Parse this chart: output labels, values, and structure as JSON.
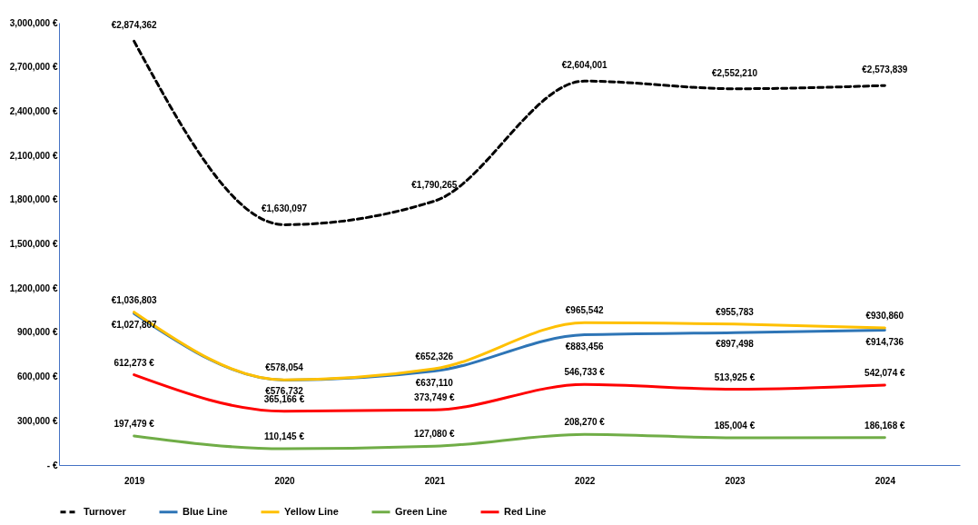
{
  "chart_data": {
    "type": "line",
    "categories": [
      "2019",
      "2020",
      "2021",
      "2022",
      "2023",
      "2024"
    ],
    "series": [
      {
        "name": "Turnover",
        "color": "#000000",
        "line_style": "dashed",
        "values": [
          2874362,
          1630097,
          1790265,
          2604001,
          2552210,
          2573839
        ],
        "value_labels": [
          "€2,874,362",
          "€1,630,097",
          "€1,790,265",
          "€2,604,001",
          "€2,552,210",
          "€2,573,839"
        ]
      },
      {
        "name": "Blue Line",
        "color": "#2e75b6",
        "line_style": "solid",
        "values": [
          1027807,
          576732,
          637110,
          883456,
          897498,
          914736
        ],
        "value_labels": [
          "€1,027,807",
          "€576,732",
          "€637,110",
          "€883,456",
          "€897,498",
          "€914,736"
        ]
      },
      {
        "name": "Yellow Line",
        "color": "#ffc000",
        "line_style": "solid",
        "values": [
          1036803,
          578054,
          652326,
          965542,
          955783,
          930860
        ],
        "value_labels": [
          "€1,036,803",
          "€578,054",
          "€652,326",
          "€965,542",
          "€955,783",
          "€930,860"
        ]
      },
      {
        "name": "Green Line",
        "color": "#70ad47",
        "line_style": "solid",
        "values": [
          197479,
          110145,
          127080,
          208270,
          185004,
          186168
        ],
        "value_labels": [
          "197,479 €",
          "110,145 €",
          "127,080 €",
          "208,270 €",
          "185,004 €",
          "186,168 €"
        ]
      },
      {
        "name": "Red Line",
        "color": "#ff0000",
        "line_style": "solid",
        "values": [
          612273,
          365166,
          373749,
          546733,
          513925,
          542074
        ],
        "value_labels": [
          "612,273 €",
          "365,166 €",
          "373,749 €",
          "546,733 €",
          "513,925 €",
          "542,074 €"
        ]
      }
    ],
    "ylim": [
      0,
      3000000
    ],
    "yticks": [
      {
        "value": 0,
        "label": "-  €"
      },
      {
        "value": 300000,
        "label": "300,000 €"
      },
      {
        "value": 600000,
        "label": "600,000 €"
      },
      {
        "value": 900000,
        "label": "900,000 €"
      },
      {
        "value": 1200000,
        "label": "1,200,000 €"
      },
      {
        "value": 1500000,
        "label": "1,500,000 €"
      },
      {
        "value": 1800000,
        "label": "1,800,000 €"
      },
      {
        "value": 2100000,
        "label": "2,100,000 €"
      },
      {
        "value": 2400000,
        "label": "2,400,000 €"
      },
      {
        "value": 2700000,
        "label": "2,700,000 €"
      },
      {
        "value": 3000000,
        "label": "3,000,000 €"
      }
    ],
    "grid": false,
    "legend": "bottom",
    "marker": "none"
  }
}
